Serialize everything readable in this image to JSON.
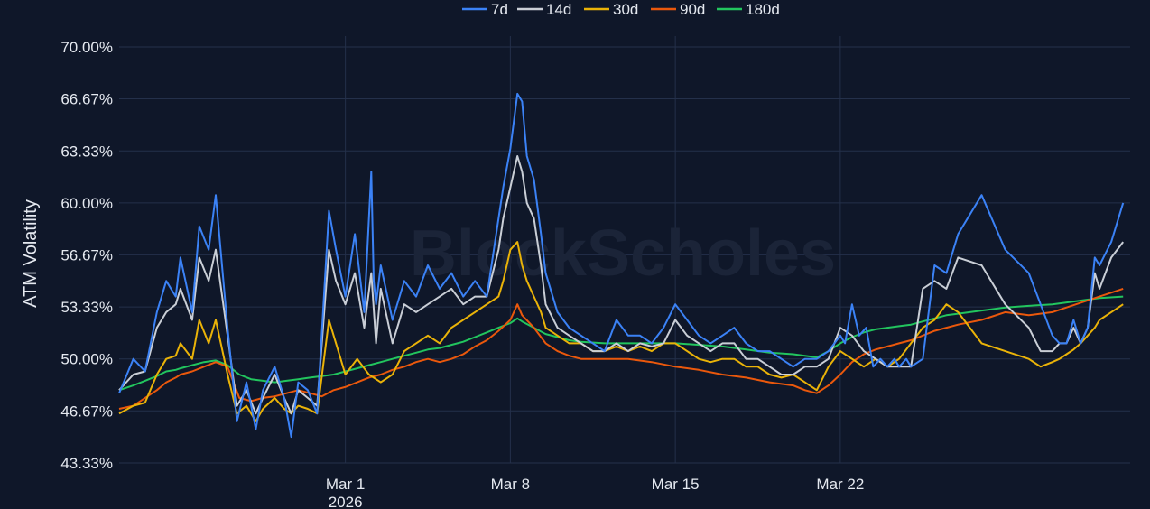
{
  "chart_data": {
    "type": "line",
    "ylabel": "ATM Volatility",
    "watermark": "BlockScholes",
    "ylim": [
      43.33,
      70.0
    ],
    "yticks": [
      "43.33%",
      "46.67%",
      "50.00%",
      "53.33%",
      "56.67%",
      "60.00%",
      "63.33%",
      "66.67%",
      "70.00%"
    ],
    "xlim": [
      -9.6,
      33.3
    ],
    "xticks": [
      {
        "label": "Mar 1",
        "sublabel": "2026",
        "day": 0
      },
      {
        "label": "Mar 8",
        "sublabel": "",
        "day": 7
      },
      {
        "label": "Mar 15",
        "sublabel": "",
        "day": 14
      },
      {
        "label": "Mar 22",
        "sublabel": "",
        "day": 21
      }
    ],
    "grid": true,
    "legend_position": "top-center",
    "series": [
      {
        "name": "7d",
        "color": "#3b82f6",
        "x": [
          -9.6,
          -9.0,
          -8.5,
          -8.0,
          -7.6,
          -7.2,
          -7.0,
          -6.5,
          -6.2,
          -5.8,
          -5.5,
          -5.0,
          -4.6,
          -4.2,
          -3.8,
          -3.5,
          -3.0,
          -2.6,
          -2.3,
          -2.0,
          -1.6,
          -1.2,
          -0.7,
          -0.4,
          0.0,
          0.4,
          0.8,
          1.1,
          1.2,
          1.3,
          1.5,
          2.0,
          2.5,
          3.0,
          3.5,
          4.0,
          4.5,
          5.0,
          5.5,
          6.0,
          6.5,
          6.7,
          7.0,
          7.3,
          7.5,
          7.7,
          8.0,
          8.3,
          8.5,
          9.0,
          9.5,
          10.0,
          10.5,
          11.0,
          11.5,
          12.0,
          12.5,
          13.0,
          13.5,
          14.0,
          14.5,
          15.0,
          15.5,
          16.0,
          16.5,
          17.0,
          17.5,
          18.0,
          18.5,
          19.0,
          19.5,
          20.0,
          20.5,
          21.0,
          21.2,
          21.5,
          21.8,
          22.1,
          22.4,
          22.7,
          23.0,
          23.3,
          23.5,
          23.8,
          24.0,
          24.5,
          25.0,
          25.5,
          26.0,
          27.0,
          28.0,
          29.0,
          29.5,
          30.0,
          30.3,
          30.6,
          30.9,
          31.2,
          31.5,
          31.8,
          32.0,
          32.5,
          33.0
        ],
        "y": [
          47.8,
          50.0,
          49.2,
          53.0,
          55.0,
          54.0,
          56.5,
          53.0,
          58.5,
          57.0,
          60.5,
          52.0,
          46.0,
          48.5,
          45.5,
          48.0,
          49.5,
          47.5,
          45.0,
          48.5,
          48.0,
          46.5,
          59.5,
          57.0,
          54.0,
          58.0,
          53.0,
          62.0,
          55.0,
          53.5,
          56.0,
          52.5,
          55.0,
          54.0,
          56.0,
          54.5,
          55.5,
          54.0,
          55.0,
          54.0,
          59.0,
          61.0,
          63.5,
          67.0,
          66.5,
          63.0,
          61.5,
          58.0,
          55.5,
          53.0,
          52.0,
          51.5,
          51.0,
          50.5,
          52.5,
          51.5,
          51.5,
          51.0,
          52.0,
          53.5,
          52.5,
          51.5,
          51.0,
          51.5,
          52.0,
          51.0,
          50.5,
          50.5,
          50.0,
          49.5,
          50.0,
          50.0,
          50.5,
          51.5,
          51.0,
          53.5,
          51.5,
          52.0,
          49.5,
          50.0,
          49.5,
          50.0,
          49.5,
          50.0,
          49.5,
          50.0,
          56.0,
          55.5,
          58.0,
          60.5,
          57.0,
          55.5,
          53.5,
          51.5,
          51.0,
          51.0,
          52.5,
          51.0,
          52.0,
          56.5,
          56.0,
          57.5,
          60.0
        ]
      },
      {
        "name": "14d",
        "color": "#c9ced6",
        "x": [
          -9.6,
          -9.0,
          -8.5,
          -8.0,
          -7.6,
          -7.2,
          -7.0,
          -6.5,
          -6.2,
          -5.8,
          -5.5,
          -5.0,
          -4.6,
          -4.2,
          -3.8,
          -3.5,
          -3.0,
          -2.6,
          -2.3,
          -2.0,
          -1.6,
          -1.2,
          -0.7,
          -0.4,
          0.0,
          0.4,
          0.8,
          1.1,
          1.3,
          1.5,
          2.0,
          2.5,
          3.0,
          3.5,
          4.0,
          4.5,
          5.0,
          5.5,
          6.0,
          6.5,
          6.7,
          7.0,
          7.3,
          7.5,
          7.7,
          8.0,
          8.3,
          8.5,
          9.0,
          9.5,
          10.0,
          10.5,
          11.0,
          11.5,
          12.0,
          12.5,
          13.0,
          13.5,
          14.0,
          14.5,
          15.0,
          15.5,
          16.0,
          16.5,
          17.0,
          17.5,
          18.0,
          18.5,
          19.0,
          19.5,
          20.0,
          20.5,
          21.0,
          21.5,
          22.0,
          22.5,
          23.0,
          23.5,
          24.0,
          24.5,
          25.0,
          25.5,
          26.0,
          27.0,
          28.0,
          29.0,
          29.5,
          30.0,
          30.3,
          30.6,
          30.9,
          31.2,
          31.5,
          31.8,
          32.0,
          32.5,
          33.0
        ],
        "y": [
          48.0,
          49.0,
          49.2,
          52.0,
          53.0,
          53.5,
          54.5,
          52.5,
          56.5,
          55.0,
          57.0,
          51.5,
          47.0,
          48.0,
          46.5,
          47.5,
          49.0,
          47.5,
          46.5,
          48.0,
          47.5,
          47.0,
          57.0,
          55.0,
          53.5,
          55.5,
          52.0,
          55.5,
          51.0,
          54.5,
          51.0,
          53.5,
          53.0,
          53.5,
          54.0,
          54.5,
          53.5,
          54.0,
          54.0,
          57.0,
          59.0,
          61.0,
          63.0,
          62.0,
          60.0,
          59.0,
          56.0,
          53.5,
          52.0,
          51.5,
          51.0,
          50.5,
          50.5,
          51.0,
          50.5,
          51.0,
          50.8,
          51.0,
          52.5,
          51.5,
          51.0,
          50.5,
          51.0,
          51.0,
          50.0,
          50.0,
          49.5,
          49.0,
          49.0,
          49.5,
          49.5,
          50.0,
          52.0,
          51.5,
          50.5,
          50.0,
          49.5,
          49.5,
          49.5,
          54.5,
          55.0,
          54.5,
          56.5,
          56.0,
          53.5,
          52.0,
          50.5,
          50.5,
          51.0,
          51.0,
          52.0,
          51.0,
          52.0,
          55.5,
          54.5,
          56.5,
          57.5
        ]
      },
      {
        "name": "30d",
        "color": "#eab308",
        "x": [
          -9.6,
          -9.0,
          -8.5,
          -8.0,
          -7.6,
          -7.2,
          -7.0,
          -6.5,
          -6.2,
          -5.8,
          -5.5,
          -5.0,
          -4.6,
          -4.2,
          -3.8,
          -3.5,
          -3.0,
          -2.6,
          -2.3,
          -2.0,
          -1.6,
          -1.2,
          -0.7,
          -0.4,
          0.0,
          0.5,
          1.0,
          1.5,
          2.0,
          2.5,
          3.0,
          3.5,
          4.0,
          4.5,
          5.0,
          5.5,
          6.0,
          6.5,
          6.7,
          7.0,
          7.3,
          7.5,
          7.7,
          8.0,
          8.3,
          8.5,
          9.0,
          9.5,
          10.0,
          10.5,
          11.0,
          11.5,
          12.0,
          12.5,
          13.0,
          13.5,
          14.0,
          14.5,
          15.0,
          15.5,
          16.0,
          16.5,
          17.0,
          17.5,
          18.0,
          18.5,
          19.0,
          19.5,
          20.0,
          20.5,
          21.0,
          21.5,
          22.0,
          22.5,
          23.0,
          23.5,
          24.0,
          24.5,
          25.0,
          25.5,
          26.0,
          27.0,
          28.0,
          29.0,
          29.5,
          30.0,
          30.3,
          30.6,
          30.9,
          31.2,
          31.5,
          31.8,
          32.0,
          32.5,
          33.0
        ],
        "y": [
          46.5,
          47.0,
          47.2,
          49.0,
          50.0,
          50.2,
          51.0,
          50.0,
          52.5,
          51.0,
          52.5,
          49.0,
          46.5,
          47.0,
          46.0,
          46.8,
          47.5,
          46.8,
          46.5,
          47.0,
          46.8,
          46.5,
          52.5,
          51.0,
          49.0,
          50.0,
          49.0,
          48.5,
          49.0,
          50.5,
          51.0,
          51.5,
          51.0,
          52.0,
          52.5,
          53.0,
          53.5,
          54.0,
          55.0,
          57.0,
          57.5,
          56.0,
          55.0,
          54.0,
          53.0,
          52.0,
          51.5,
          51.0,
          51.0,
          50.5,
          50.5,
          50.8,
          50.5,
          50.8,
          50.5,
          51.0,
          51.0,
          50.5,
          50.0,
          49.8,
          50.0,
          50.0,
          49.5,
          49.5,
          49.0,
          48.8,
          49.0,
          48.5,
          48.0,
          49.5,
          50.5,
          50.0,
          49.5,
          50.0,
          49.5,
          50.0,
          51.0,
          52.0,
          52.5,
          53.5,
          53.0,
          51.0,
          50.5,
          50.0,
          49.5,
          49.8,
          50.0,
          50.3,
          50.6,
          51.0,
          51.5,
          52.0,
          52.5,
          53.0,
          53.5
        ]
      },
      {
        "name": "90d",
        "color": "#ea580c",
        "x": [
          -9.6,
          -9.0,
          -8.5,
          -8.0,
          -7.6,
          -7.2,
          -7.0,
          -6.5,
          -6.0,
          -5.5,
          -5.0,
          -4.5,
          -4.0,
          -3.5,
          -3.0,
          -2.5,
          -2.0,
          -1.5,
          -1.0,
          -0.5,
          0.0,
          0.5,
          1.0,
          1.5,
          2.0,
          2.5,
          3.0,
          3.5,
          4.0,
          4.5,
          5.0,
          5.5,
          6.0,
          6.5,
          7.0,
          7.3,
          7.5,
          8.0,
          8.5,
          9.0,
          9.5,
          10.0,
          11.0,
          12.0,
          13.0,
          14.0,
          15.0,
          16.0,
          17.0,
          18.0,
          19.0,
          19.5,
          20.0,
          20.5,
          21.0,
          21.5,
          22.0,
          22.5,
          23.0,
          23.5,
          24.0,
          24.5,
          25.0,
          25.5,
          26.0,
          27.0,
          28.0,
          29.0,
          30.0,
          31.0,
          32.0,
          33.0
        ],
        "y": [
          46.8,
          47.0,
          47.5,
          48.0,
          48.5,
          48.8,
          49.0,
          49.2,
          49.5,
          49.8,
          49.5,
          47.5,
          47.3,
          47.5,
          47.6,
          47.8,
          48.0,
          47.8,
          47.6,
          48.0,
          48.2,
          48.5,
          48.8,
          49.0,
          49.3,
          49.5,
          49.8,
          50.0,
          49.8,
          50.0,
          50.3,
          50.8,
          51.2,
          51.8,
          52.5,
          53.5,
          52.8,
          52.0,
          51.0,
          50.5,
          50.2,
          50.0,
          50.0,
          50.0,
          49.8,
          49.5,
          49.3,
          49.0,
          48.8,
          48.5,
          48.3,
          48.0,
          47.8,
          48.3,
          49.0,
          49.8,
          50.3,
          50.6,
          50.8,
          51.0,
          51.2,
          51.5,
          51.8,
          52.0,
          52.2,
          52.5,
          53.0,
          52.8,
          53.0,
          53.5,
          54.0,
          54.5
        ]
      },
      {
        "name": "180d",
        "color": "#22c55e",
        "x": [
          -9.6,
          -9.0,
          -8.5,
          -8.0,
          -7.6,
          -7.2,
          -7.0,
          -6.5,
          -6.0,
          -5.5,
          -5.0,
          -4.5,
          -4.0,
          -3.5,
          -3.0,
          -2.5,
          -2.0,
          -1.5,
          -1.0,
          -0.5,
          0.0,
          0.5,
          1.0,
          1.5,
          2.0,
          2.5,
          3.0,
          3.5,
          4.0,
          4.5,
          5.0,
          5.5,
          6.0,
          6.5,
          7.0,
          7.3,
          7.5,
          8.0,
          8.5,
          9.0,
          9.5,
          10.0,
          11.0,
          12.0,
          13.0,
          14.0,
          15.0,
          16.0,
          17.0,
          18.0,
          19.0,
          19.5,
          20.0,
          20.5,
          21.0,
          21.5,
          22.0,
          22.5,
          23.0,
          23.5,
          24.0,
          24.5,
          25.0,
          25.5,
          26.0,
          27.0,
          28.0,
          29.0,
          30.0,
          31.0,
          32.0,
          33.0
        ],
        "y": [
          48.0,
          48.3,
          48.6,
          48.9,
          49.2,
          49.3,
          49.4,
          49.6,
          49.8,
          49.9,
          49.6,
          49.0,
          48.7,
          48.6,
          48.5,
          48.6,
          48.7,
          48.8,
          48.9,
          49.0,
          49.2,
          49.4,
          49.6,
          49.8,
          50.0,
          50.2,
          50.4,
          50.6,
          50.7,
          50.9,
          51.1,
          51.4,
          51.7,
          52.0,
          52.3,
          52.6,
          52.4,
          52.0,
          51.6,
          51.4,
          51.2,
          51.1,
          51.0,
          51.0,
          51.0,
          51.0,
          50.9,
          50.8,
          50.6,
          50.4,
          50.3,
          50.2,
          50.1,
          50.5,
          51.0,
          51.4,
          51.7,
          51.9,
          52.0,
          52.1,
          52.2,
          52.4,
          52.6,
          52.8,
          52.9,
          53.1,
          53.3,
          53.4,
          53.5,
          53.7,
          53.9,
          54.0
        ]
      }
    ]
  }
}
